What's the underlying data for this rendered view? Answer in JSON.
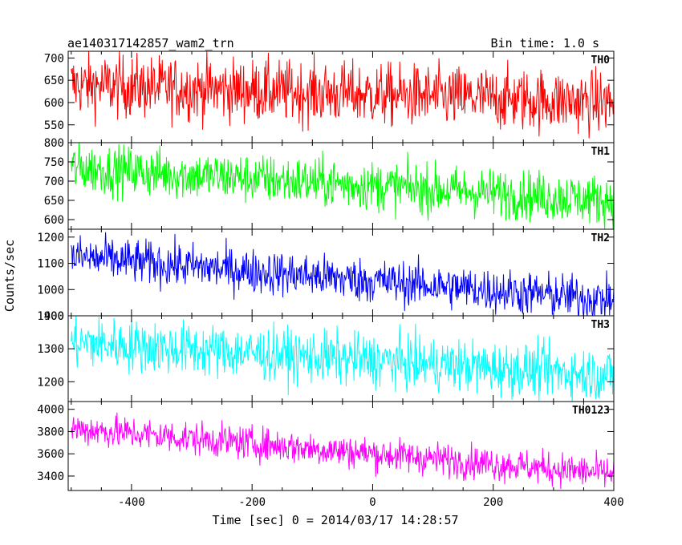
{
  "chart": {
    "title": "ae140317142857_wam2_trn",
    "bin_label": "Bin time: 1.0 s",
    "ylabel": "Counts/sec",
    "xlabel": "Time [sec] 0 = 2014/03/17 14:28:57"
  },
  "chart_data": {
    "type": "line",
    "x_range": [
      -505,
      400
    ],
    "bin_time": 1.0,
    "x_ticks": [
      -400,
      -200,
      0,
      200,
      400
    ],
    "panels": [
      {
        "name": "TH0",
        "color": "#ff0000",
        "ylim": [
          510,
          715
        ],
        "y_ticks": [
          550,
          600,
          650,
          700
        ],
        "trend_start": 640,
        "trend_end": 600,
        "noise": 35
      },
      {
        "name": "TH1",
        "color": "#00ff00",
        "ylim": [
          575,
          800
        ],
        "y_ticks": [
          600,
          650,
          700,
          750,
          800
        ],
        "trend_start": 735,
        "trend_end": 650,
        "noise": 32
      },
      {
        "name": "TH2",
        "color": "#0000ff",
        "ylim": [
          900,
          1230
        ],
        "y_ticks": [
          900,
          1000,
          1100,
          1200
        ],
        "trend_start": 1125,
        "trend_end": 960,
        "noise": 42
      },
      {
        "name": "TH3",
        "color": "#00ffff",
        "ylim": [
          1140,
          1400
        ],
        "y_ticks": [
          1200,
          1300,
          1400
        ],
        "trend_start": 1320,
        "trend_end": 1220,
        "noise": 40
      },
      {
        "name": "TH0123",
        "color": "#ff00ff",
        "ylim": [
          3270,
          4070
        ],
        "y_ticks": [
          3400,
          3600,
          3800,
          4000
        ],
        "trend_start": 3830,
        "trend_end": 3420,
        "noise": 75
      }
    ]
  }
}
